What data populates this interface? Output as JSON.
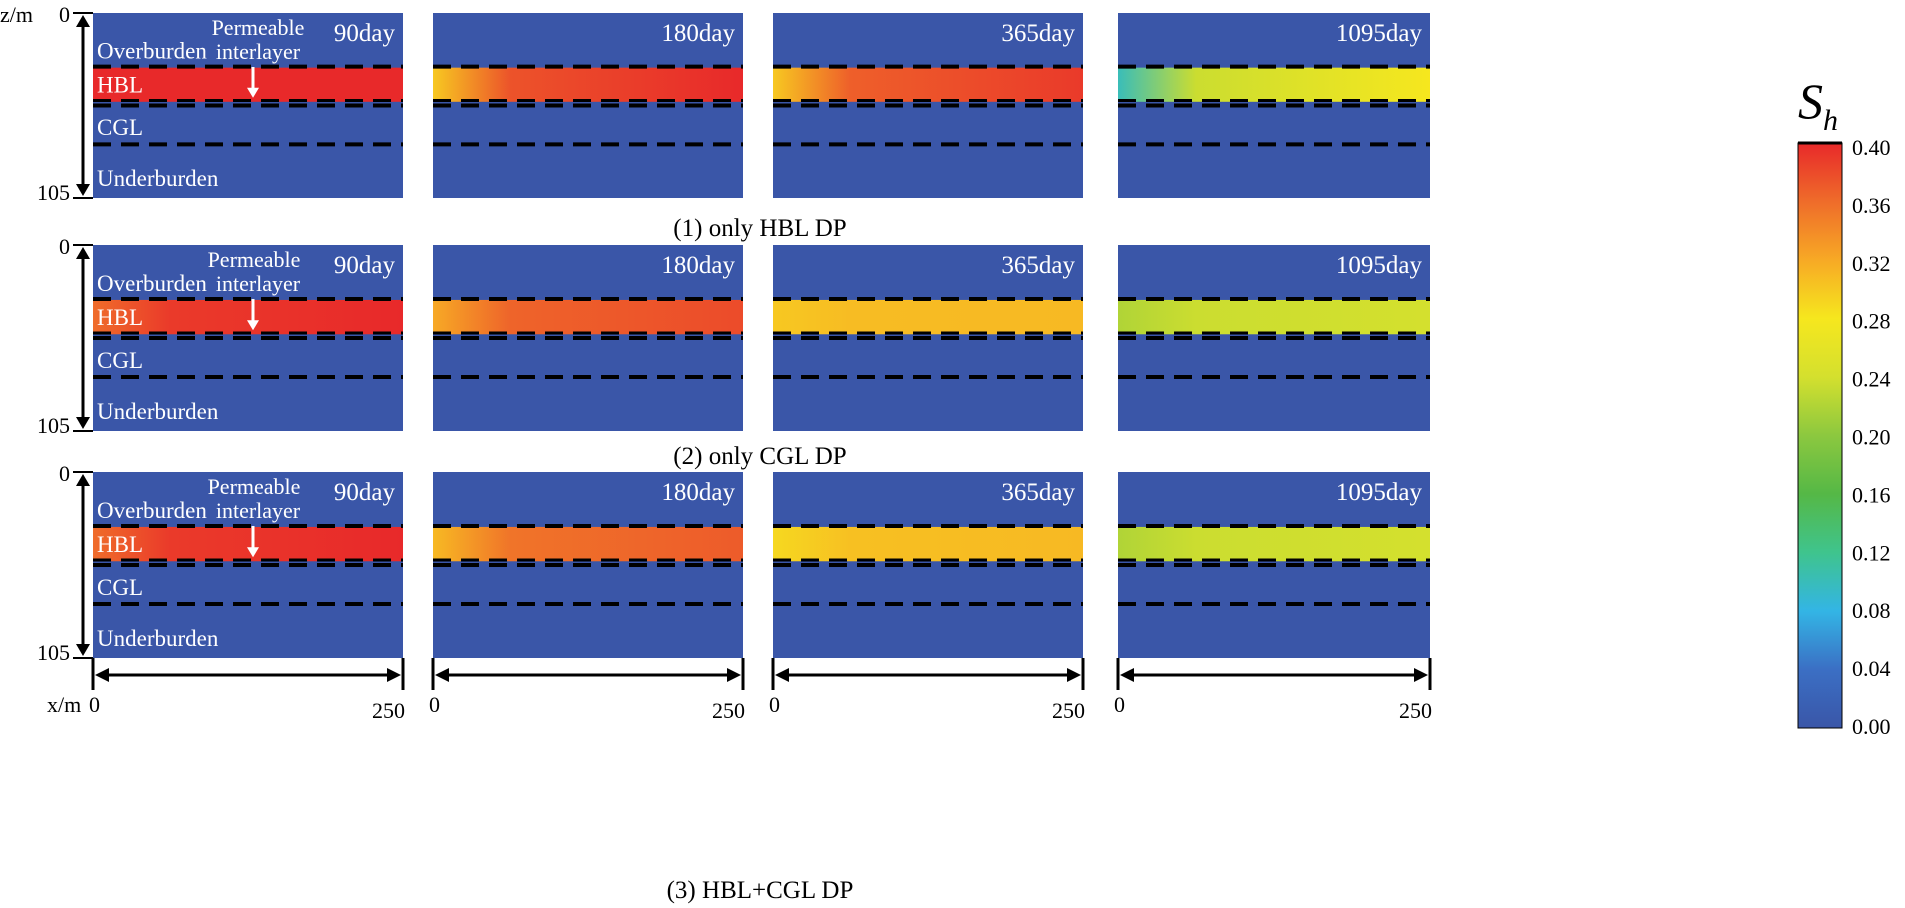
{
  "figure": {
    "z_axis_label": "z/m",
    "x_axis_label": "x/m",
    "z_ticks": [
      "0",
      "105"
    ],
    "x_ticks": [
      "0",
      "250"
    ],
    "layer_labels": {
      "overburden": "Overburden",
      "hbl": "HBL",
      "cgl": "CGL",
      "underburden": "Underburden"
    },
    "annotation": {
      "line1": "Permeable",
      "line2": "interlayer"
    }
  },
  "rows": [
    {
      "caption": "(1) only HBL DP",
      "panels": [
        {
          "day": "90day",
          "sh_start": 0.4,
          "sh_end": 0.4
        },
        {
          "day": "180day",
          "sh_start": 0.3,
          "sh_end": 0.4
        },
        {
          "day": "365day",
          "sh_start": 0.3,
          "sh_end": 0.39
        },
        {
          "day": "1095day",
          "sh_start": 0.1,
          "sh_end": 0.28
        }
      ]
    },
    {
      "caption": "(2) only CGL DP",
      "panels": [
        {
          "day": "90day",
          "sh_start": 0.36,
          "sh_end": 0.4
        },
        {
          "day": "180day",
          "sh_start": 0.32,
          "sh_end": 0.38
        },
        {
          "day": "365day",
          "sh_start": 0.3,
          "sh_end": 0.31
        },
        {
          "day": "1095day",
          "sh_start": 0.22,
          "sh_end": 0.24
        }
      ]
    },
    {
      "caption": "(3) HBL+CGL DP",
      "panels": [
        {
          "day": "90day",
          "sh_start": 0.36,
          "sh_end": 0.4
        },
        {
          "day": "180day",
          "sh_start": 0.31,
          "sh_end": 0.37
        },
        {
          "day": "365day",
          "sh_start": 0.29,
          "sh_end": 0.31
        },
        {
          "day": "1095day",
          "sh_start": 0.22,
          "sh_end": 0.24
        }
      ]
    }
  ],
  "colorbar": {
    "symbol_main": "S",
    "symbol_sub": "h",
    "min": 0.0,
    "max": 0.4,
    "ticks": [
      "0.40",
      "0.36",
      "0.32",
      "0.28",
      "0.24",
      "0.20",
      "0.16",
      "0.12",
      "0.08",
      "0.04",
      "0.00"
    ]
  },
  "colors": {
    "background_blue": "#3a56a8",
    "label_white": "#ffffff",
    "line_black": "#000000",
    "colormap": [
      "#3a56a8",
      "#3b6fc4",
      "#33b5e5",
      "#3fc48d",
      "#55b846",
      "#8cc83f",
      "#d4e02e",
      "#f6e71e",
      "#f7a925",
      "#ef6c2a",
      "#e8292a"
    ]
  }
}
